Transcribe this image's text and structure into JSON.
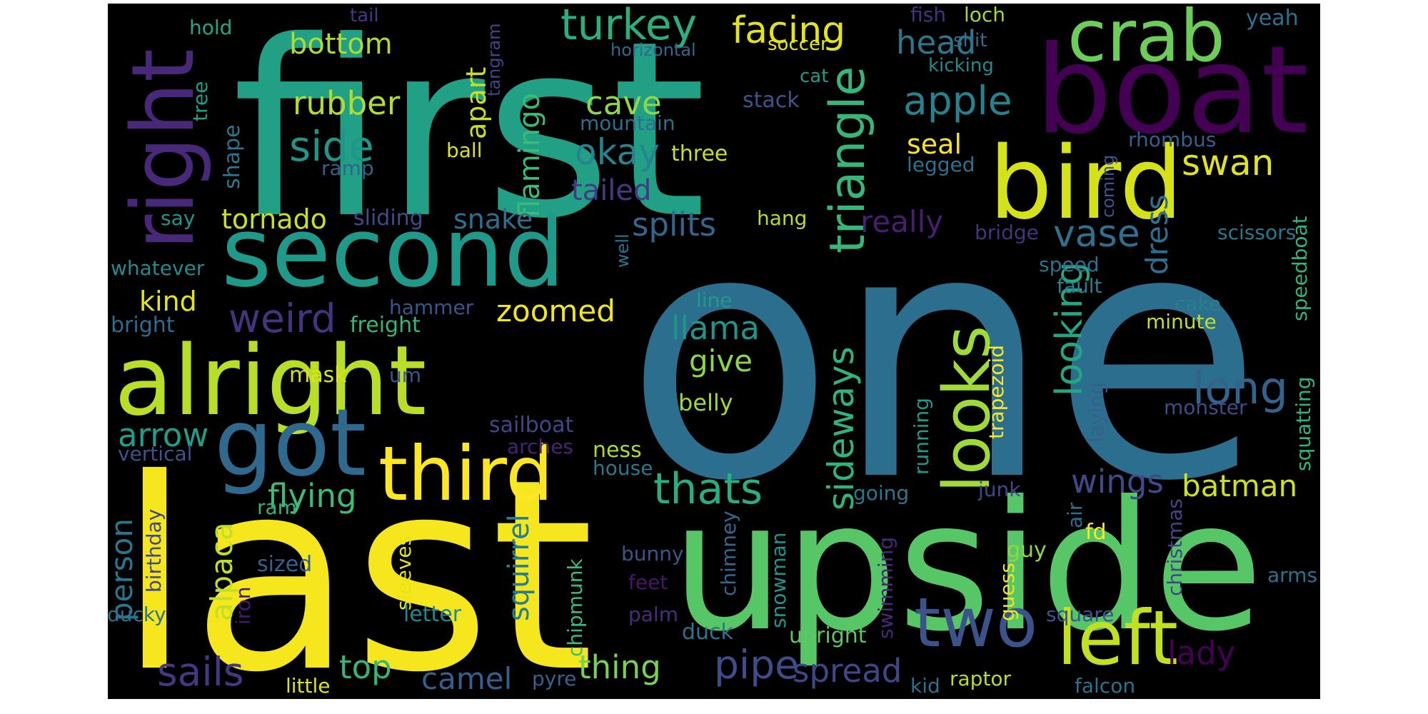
{
  "word_cloud": {
    "background": "#000000",
    "page_background": "#ffffff",
    "palette": "viridis",
    "words": [
      {
        "text": "first",
        "color": "#21A085"
      },
      {
        "text": "one",
        "color": "#2C6E8E"
      },
      {
        "text": "last",
        "color": "#F5E61E"
      },
      {
        "text": "upside",
        "color": "#56C667"
      },
      {
        "text": "boat",
        "color": "#440154"
      },
      {
        "text": "second",
        "color": "#1F9A8A"
      },
      {
        "text": "alright",
        "color": "#B8DE29"
      },
      {
        "text": "bird",
        "color": "#D5E21A"
      },
      {
        "text": "right",
        "color": "#482878"
      },
      {
        "text": "crab",
        "color": "#6CCE59"
      },
      {
        "text": "got",
        "color": "#30698E"
      },
      {
        "text": "third",
        "color": "#FDE725"
      },
      {
        "text": "two",
        "color": "#3B528B"
      },
      {
        "text": "left",
        "color": "#C2DF23"
      },
      {
        "text": "looks",
        "color": "#A0DA39"
      },
      {
        "text": "triangle",
        "color": "#35B779"
      },
      {
        "text": "sideways",
        "color": "#2FB47C"
      },
      {
        "text": "turkey",
        "color": "#2AB07F"
      },
      {
        "text": "facing",
        "color": "#E2E418"
      },
      {
        "text": "head",
        "color": "#2A788E"
      },
      {
        "text": "apple",
        "color": "#26828E"
      },
      {
        "text": "side",
        "color": "#1F968B"
      },
      {
        "text": "rubber",
        "color": "#B2DD2D"
      },
      {
        "text": "bottom",
        "color": "#ADDC30"
      },
      {
        "text": "cave",
        "color": "#8FD744"
      },
      {
        "text": "okay",
        "color": "#25848E"
      },
      {
        "text": "flamingo",
        "color": "#3BBB75"
      },
      {
        "text": "apart",
        "color": "#C8E020"
      },
      {
        "text": "tailed",
        "color": "#443A83"
      },
      {
        "text": "splits",
        "color": "#31678E"
      },
      {
        "text": "snake",
        "color": "#2D708E"
      },
      {
        "text": "tornado",
        "color": "#C8E020"
      },
      {
        "text": "weird",
        "color": "#46337E"
      },
      {
        "text": "kind",
        "color": "#E5E419"
      },
      {
        "text": "zoomed",
        "color": "#F1E51D"
      },
      {
        "text": "llama",
        "color": "#1F958B"
      },
      {
        "text": "give",
        "color": "#8BD646"
      },
      {
        "text": "belly",
        "color": "#9FDA3A"
      },
      {
        "text": "long",
        "color": "#33638D"
      },
      {
        "text": "looking",
        "color": "#22A785"
      },
      {
        "text": "vase",
        "color": "#2D718E"
      },
      {
        "text": "really",
        "color": "#481F70"
      },
      {
        "text": "seal",
        "color": "#F8E621"
      },
      {
        "text": "swan",
        "color": "#E2E418"
      },
      {
        "text": "dress",
        "color": "#2E6E8E"
      },
      {
        "text": "wings",
        "color": "#3E4A89"
      },
      {
        "text": "batman",
        "color": "#CDE11D"
      },
      {
        "text": "thats",
        "color": "#28AE80"
      },
      {
        "text": "flying",
        "color": "#3CBC75"
      },
      {
        "text": "arrow",
        "color": "#1F9F88"
      },
      {
        "text": "person",
        "color": "#2A768E"
      },
      {
        "text": "alpaca",
        "color": "#C0DF25"
      },
      {
        "text": "sails",
        "color": "#453781"
      },
      {
        "text": "top",
        "color": "#34B679"
      },
      {
        "text": "camel",
        "color": "#355F8D"
      },
      {
        "text": "thing",
        "color": "#7AD151"
      },
      {
        "text": "pipe",
        "color": "#3E4C8A"
      },
      {
        "text": "spread",
        "color": "#3F4788"
      },
      {
        "text": "squirrel",
        "color": "#277F8E"
      },
      {
        "text": "lady",
        "color": "#440154"
      },
      {
        "text": "mountain",
        "color": "#2E6D8E"
      },
      {
        "text": "stack",
        "color": "#39558C"
      },
      {
        "text": "three",
        "color": "#C6E021"
      },
      {
        "text": "hang",
        "color": "#B5DE2B"
      },
      {
        "text": "ball",
        "color": "#DDE318"
      },
      {
        "text": "ramp",
        "color": "#33638D"
      },
      {
        "text": "say",
        "color": "#1F968B"
      },
      {
        "text": "sliding",
        "color": "#3E4C8A"
      },
      {
        "text": "whatever",
        "color": "#238A8D"
      },
      {
        "text": "bright",
        "color": "#306A8E"
      },
      {
        "text": "freight",
        "color": "#34B679"
      },
      {
        "text": "hammer",
        "color": "#39568C"
      },
      {
        "text": "mask",
        "color": "#DCE319"
      },
      {
        "text": "sailboat",
        "color": "#404688"
      },
      {
        "text": "arches",
        "color": "#482475"
      },
      {
        "text": "vertical",
        "color": "#39558C"
      },
      {
        "text": "ness",
        "color": "#A5DB36"
      },
      {
        "text": "house",
        "color": "#2A788E"
      },
      {
        "text": "ram",
        "color": "#2FB47C"
      },
      {
        "text": "sized",
        "color": "#33638D"
      },
      {
        "text": "birthday",
        "color": "#404688"
      },
      {
        "text": "iron",
        "color": "#48186A"
      },
      {
        "text": "sleeves",
        "color": "#E7E419"
      },
      {
        "text": "ducky",
        "color": "#2C718E"
      },
      {
        "text": "letter",
        "color": "#23888E"
      },
      {
        "text": "little",
        "color": "#DCE319"
      },
      {
        "text": "chipmunk",
        "color": "#3BBB75"
      },
      {
        "text": "pyre",
        "color": "#33638D"
      },
      {
        "text": "bunny",
        "color": "#39568C"
      },
      {
        "text": "feet",
        "color": "#481769"
      },
      {
        "text": "palm",
        "color": "#472D7B"
      },
      {
        "text": "duck",
        "color": "#2A768E"
      },
      {
        "text": "chimney",
        "color": "#31688E"
      },
      {
        "text": "snowman",
        "color": "#1F948C"
      },
      {
        "text": "upright",
        "color": "#5DC863"
      },
      {
        "text": "swimming",
        "color": "#482878"
      },
      {
        "text": "kid",
        "color": "#2D708E"
      },
      {
        "text": "raptor",
        "color": "#B5DE2B"
      },
      {
        "text": "falcon",
        "color": "#2C728E"
      },
      {
        "text": "square",
        "color": "#39568C"
      },
      {
        "text": "guess",
        "color": "#F1E51D"
      },
      {
        "text": "guy",
        "color": "#8FD744"
      },
      {
        "text": "air",
        "color": "#2E6E8E"
      },
      {
        "text": "fd",
        "color": "#FDE725"
      },
      {
        "text": "junk",
        "color": "#3E4A89"
      },
      {
        "text": "running",
        "color": "#1F9A8A"
      },
      {
        "text": "laying",
        "color": "#355F8D"
      },
      {
        "text": "trapezoid",
        "color": "#FDE725"
      },
      {
        "text": "going",
        "color": "#2A788E"
      },
      {
        "text": "christmas",
        "color": "#404688"
      },
      {
        "text": "arms",
        "color": "#2C728E"
      },
      {
        "text": "monster",
        "color": "#3E4C8A"
      },
      {
        "text": "squatting",
        "color": "#2FB47C"
      },
      {
        "text": "minute",
        "color": "#C0DF25"
      },
      {
        "text": "cake",
        "color": "#277F8E"
      },
      {
        "text": "speedboat",
        "color": "#2FB47C"
      },
      {
        "text": "fault",
        "color": "#277F8E"
      },
      {
        "text": "speed",
        "color": "#2C728E"
      },
      {
        "text": "scissors",
        "color": "#2A788E"
      },
      {
        "text": "bridge",
        "color": "#46337E"
      },
      {
        "text": "rhombus",
        "color": "#355F8D"
      },
      {
        "text": "coming",
        "color": "#39568C"
      },
      {
        "text": "legged",
        "color": "#2C728E"
      },
      {
        "text": "line",
        "color": "#1F9A8A"
      },
      {
        "text": "um",
        "color": "#39568C"
      },
      {
        "text": "well",
        "color": "#2C728E"
      },
      {
        "text": "fish",
        "color": "#46337E"
      },
      {
        "text": "loch",
        "color": "#9FDA3A"
      },
      {
        "text": "shit",
        "color": "#2E6E8E"
      },
      {
        "text": "kicking",
        "color": "#238A8D"
      },
      {
        "text": "yeah",
        "color": "#2C728E"
      },
      {
        "text": "soccer",
        "color": "#E5E419"
      },
      {
        "text": "cat",
        "color": "#1F9A8A"
      },
      {
        "text": "horizontal",
        "color": "#30698E"
      },
      {
        "text": "tail",
        "color": "#453781"
      },
      {
        "text": "tangram",
        "color": "#404688"
      },
      {
        "text": "hold",
        "color": "#22A785"
      },
      {
        "text": "tree",
        "color": "#1F9F88"
      },
      {
        "text": "shape",
        "color": "#2A788E"
      }
    ]
  }
}
